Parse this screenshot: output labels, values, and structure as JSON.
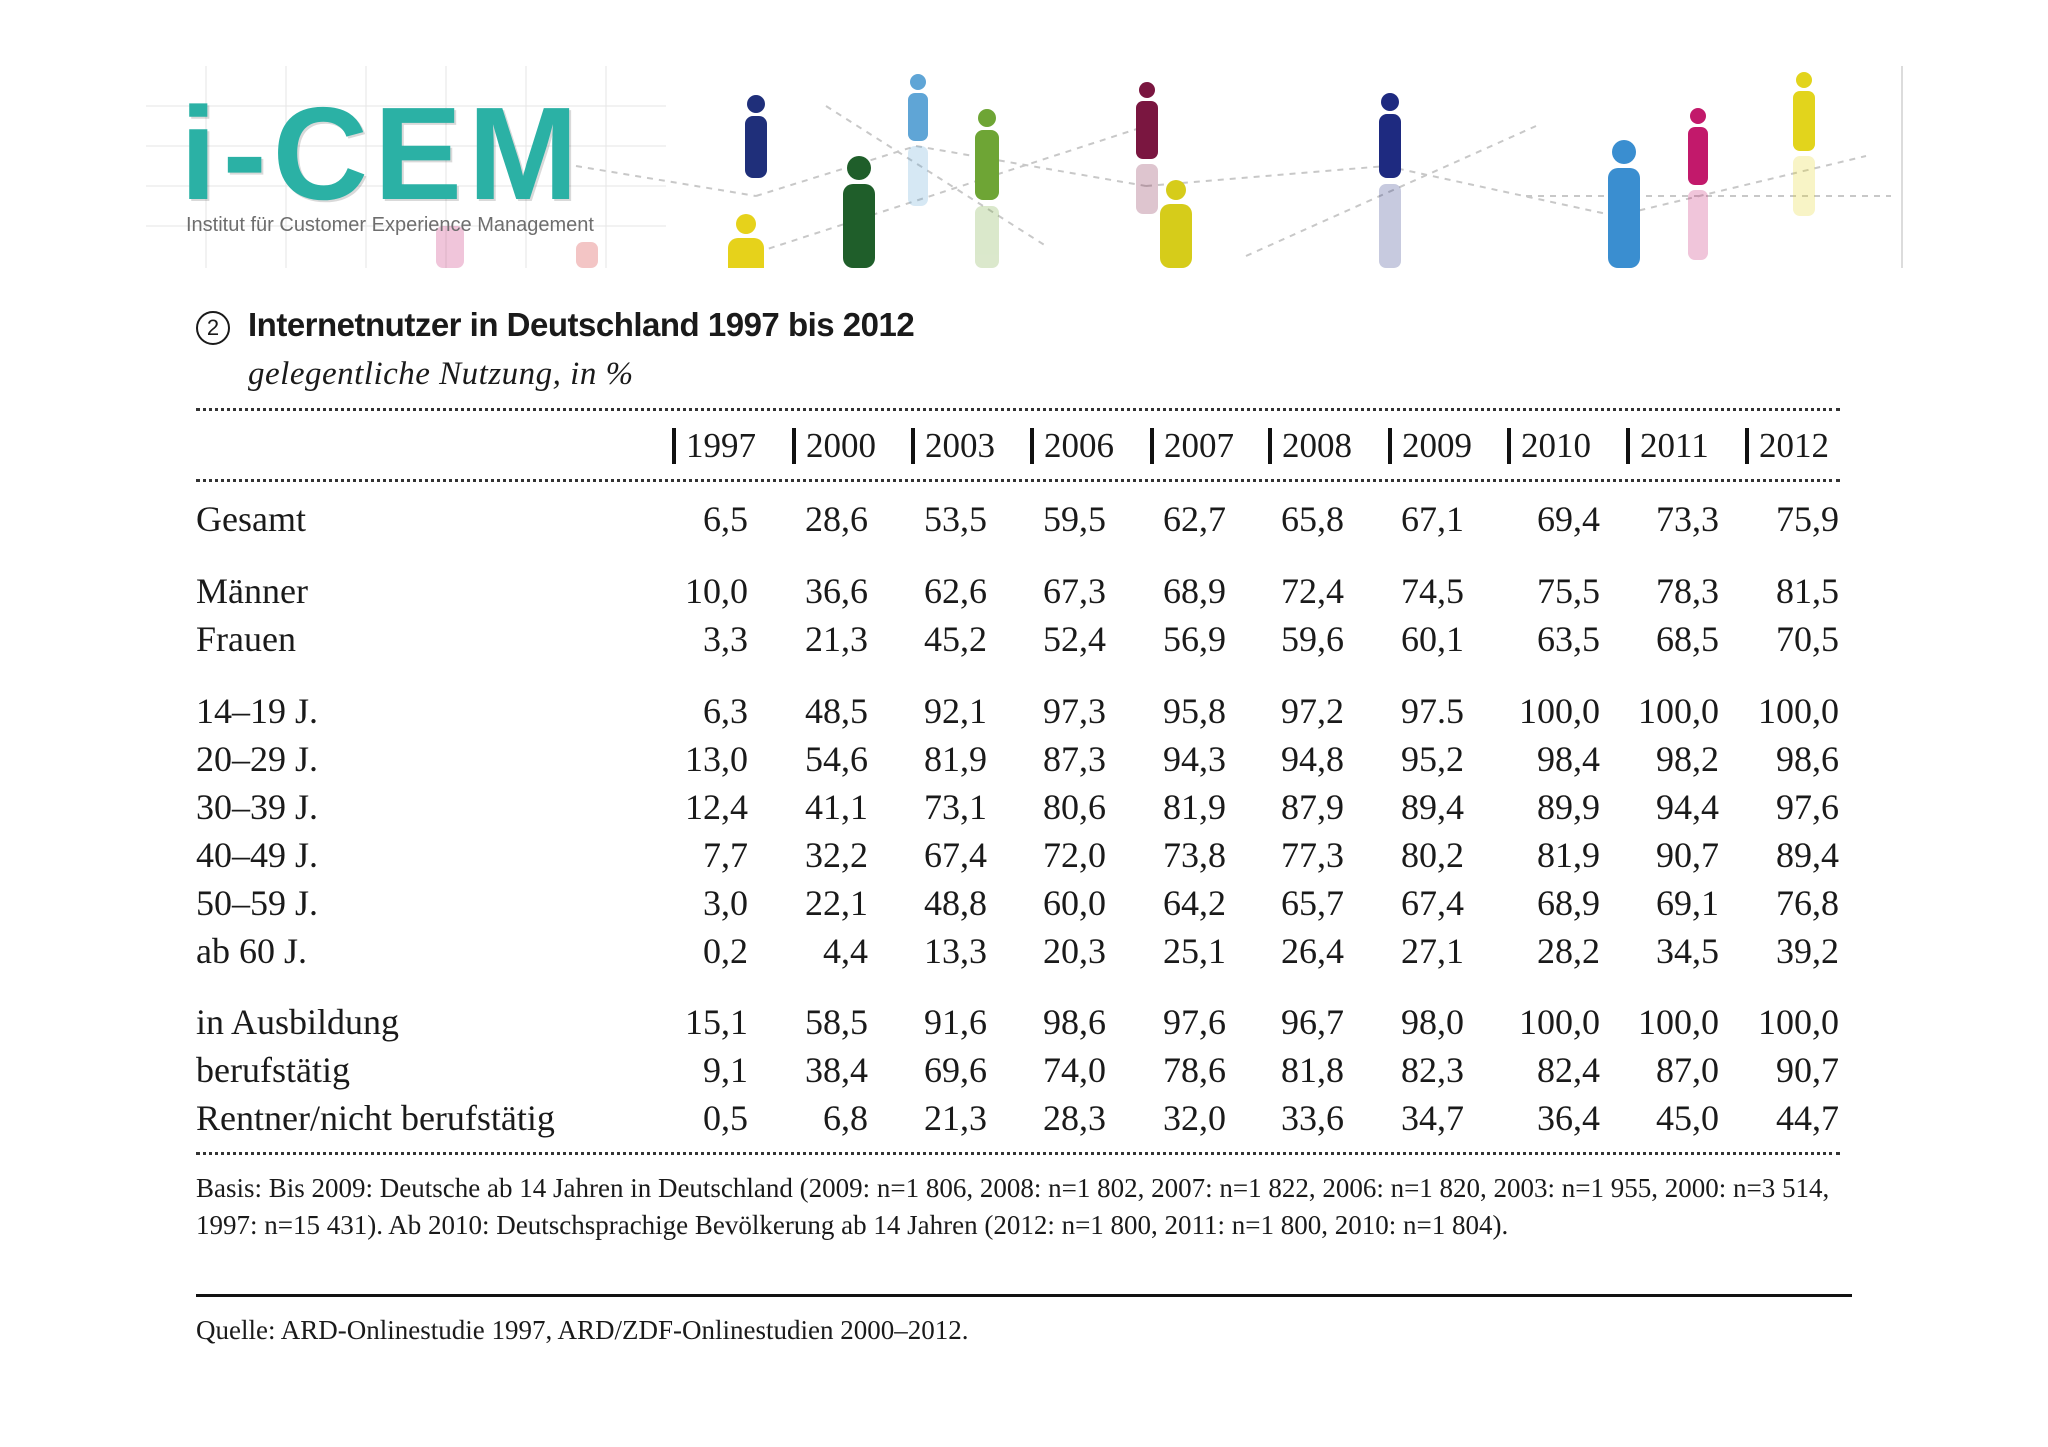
{
  "banner": {
    "logo": "i-CEM",
    "logo_subtitle": "Institut für Customer Experience Management"
  },
  "chart_number": "2",
  "title": "Internetnutzer in Deutschland 1997 bis 2012",
  "subtitle": "gelegentliche Nutzung, in %",
  "chart_data": {
    "type": "table",
    "title": "Internetnutzer in Deutschland 1997 bis 2012",
    "subtitle": "gelegentliche Nutzung, in %",
    "columns": [
      "1997",
      "2000",
      "2003",
      "2006",
      "2007",
      "2008",
      "2009",
      "2010",
      "2011",
      "2012"
    ],
    "rows": [
      {
        "label": "Gesamt",
        "values": [
          "6,5",
          "28,6",
          "53,5",
          "59,5",
          "62,7",
          "65,8",
          "67,1",
          "69,4",
          "73,3",
          "75,9"
        ]
      },
      {
        "label": "Männer",
        "values": [
          "10,0",
          "36,6",
          "62,6",
          "67,3",
          "68,9",
          "72,4",
          "74,5",
          "75,5",
          "78,3",
          "81,5"
        ]
      },
      {
        "label": "Frauen",
        "values": [
          "3,3",
          "21,3",
          "45,2",
          "52,4",
          "56,9",
          "59,6",
          "60,1",
          "63,5",
          "68,5",
          "70,5"
        ]
      },
      {
        "label": "14–19 J.",
        "values": [
          "6,3",
          "48,5",
          "92,1",
          "97,3",
          "95,8",
          "97,2",
          "97.5",
          "100,0",
          "100,0",
          "100,0"
        ]
      },
      {
        "label": "20–29 J.",
        "values": [
          "13,0",
          "54,6",
          "81,9",
          "87,3",
          "94,3",
          "94,8",
          "95,2",
          "98,4",
          "98,2",
          "98,6"
        ]
      },
      {
        "label": "30–39 J.",
        "values": [
          "12,4",
          "41,1",
          "73,1",
          "80,6",
          "81,9",
          "87,9",
          "89,4",
          "89,9",
          "94,4",
          "97,6"
        ]
      },
      {
        "label": "40–49 J.",
        "values": [
          "7,7",
          "32,2",
          "67,4",
          "72,0",
          "73,8",
          "77,3",
          "80,2",
          "81,9",
          "90,7",
          "89,4"
        ]
      },
      {
        "label": "50–59 J.",
        "values": [
          "3,0",
          "22,1",
          "48,8",
          "60,0",
          "64,2",
          "65,7",
          "67,4",
          "68,9",
          "69,1",
          "76,8"
        ]
      },
      {
        "label": "ab 60 J.",
        "values": [
          "0,2",
          "4,4",
          "13,3",
          "20,3",
          "25,1",
          "26,4",
          "27,1",
          "28,2",
          "34,5",
          "39,2"
        ]
      },
      {
        "label": "in Ausbildung",
        "values": [
          "15,1",
          "58,5",
          "91,6",
          "98,6",
          "97,6",
          "96,7",
          "98,0",
          "100,0",
          "100,0",
          "100,0"
        ]
      },
      {
        "label": "berufstätig",
        "values": [
          "9,1",
          "38,4",
          "69,6",
          "74,0",
          "78,6",
          "81,8",
          "82,3",
          "82,4",
          "87,0",
          "90,7"
        ]
      },
      {
        "label": "Rentner/nicht berufstätig",
        "values": [
          "0,5",
          "6,8",
          "21,3",
          "28,3",
          "32,0",
          "33,6",
          "34,7",
          "36,4",
          "45,0",
          "44,7"
        ]
      }
    ]
  },
  "note": "Basis: Bis 2009: Deutsche ab 14 Jahren in Deutschland (2009: n=1 806, 2008: n=1 802, 2007: n=1 822, 2006: n=1 820, 2003: n=1 955, 2000: n=3 514, 1997: n=15 431). Ab 2010: Deutschsprachige Bevölkerung ab 14 Jahren (2012: n=1 800, 2011: n=1 800, 2010: n=1 804).",
  "source": "Quelle: ARD-Onlinestudie 1997, ARD/ZDF-Onlinestudien 2000–2012.",
  "colors": {
    "logo_teal": "#2bb1a5",
    "text": "#1a1a1a"
  }
}
